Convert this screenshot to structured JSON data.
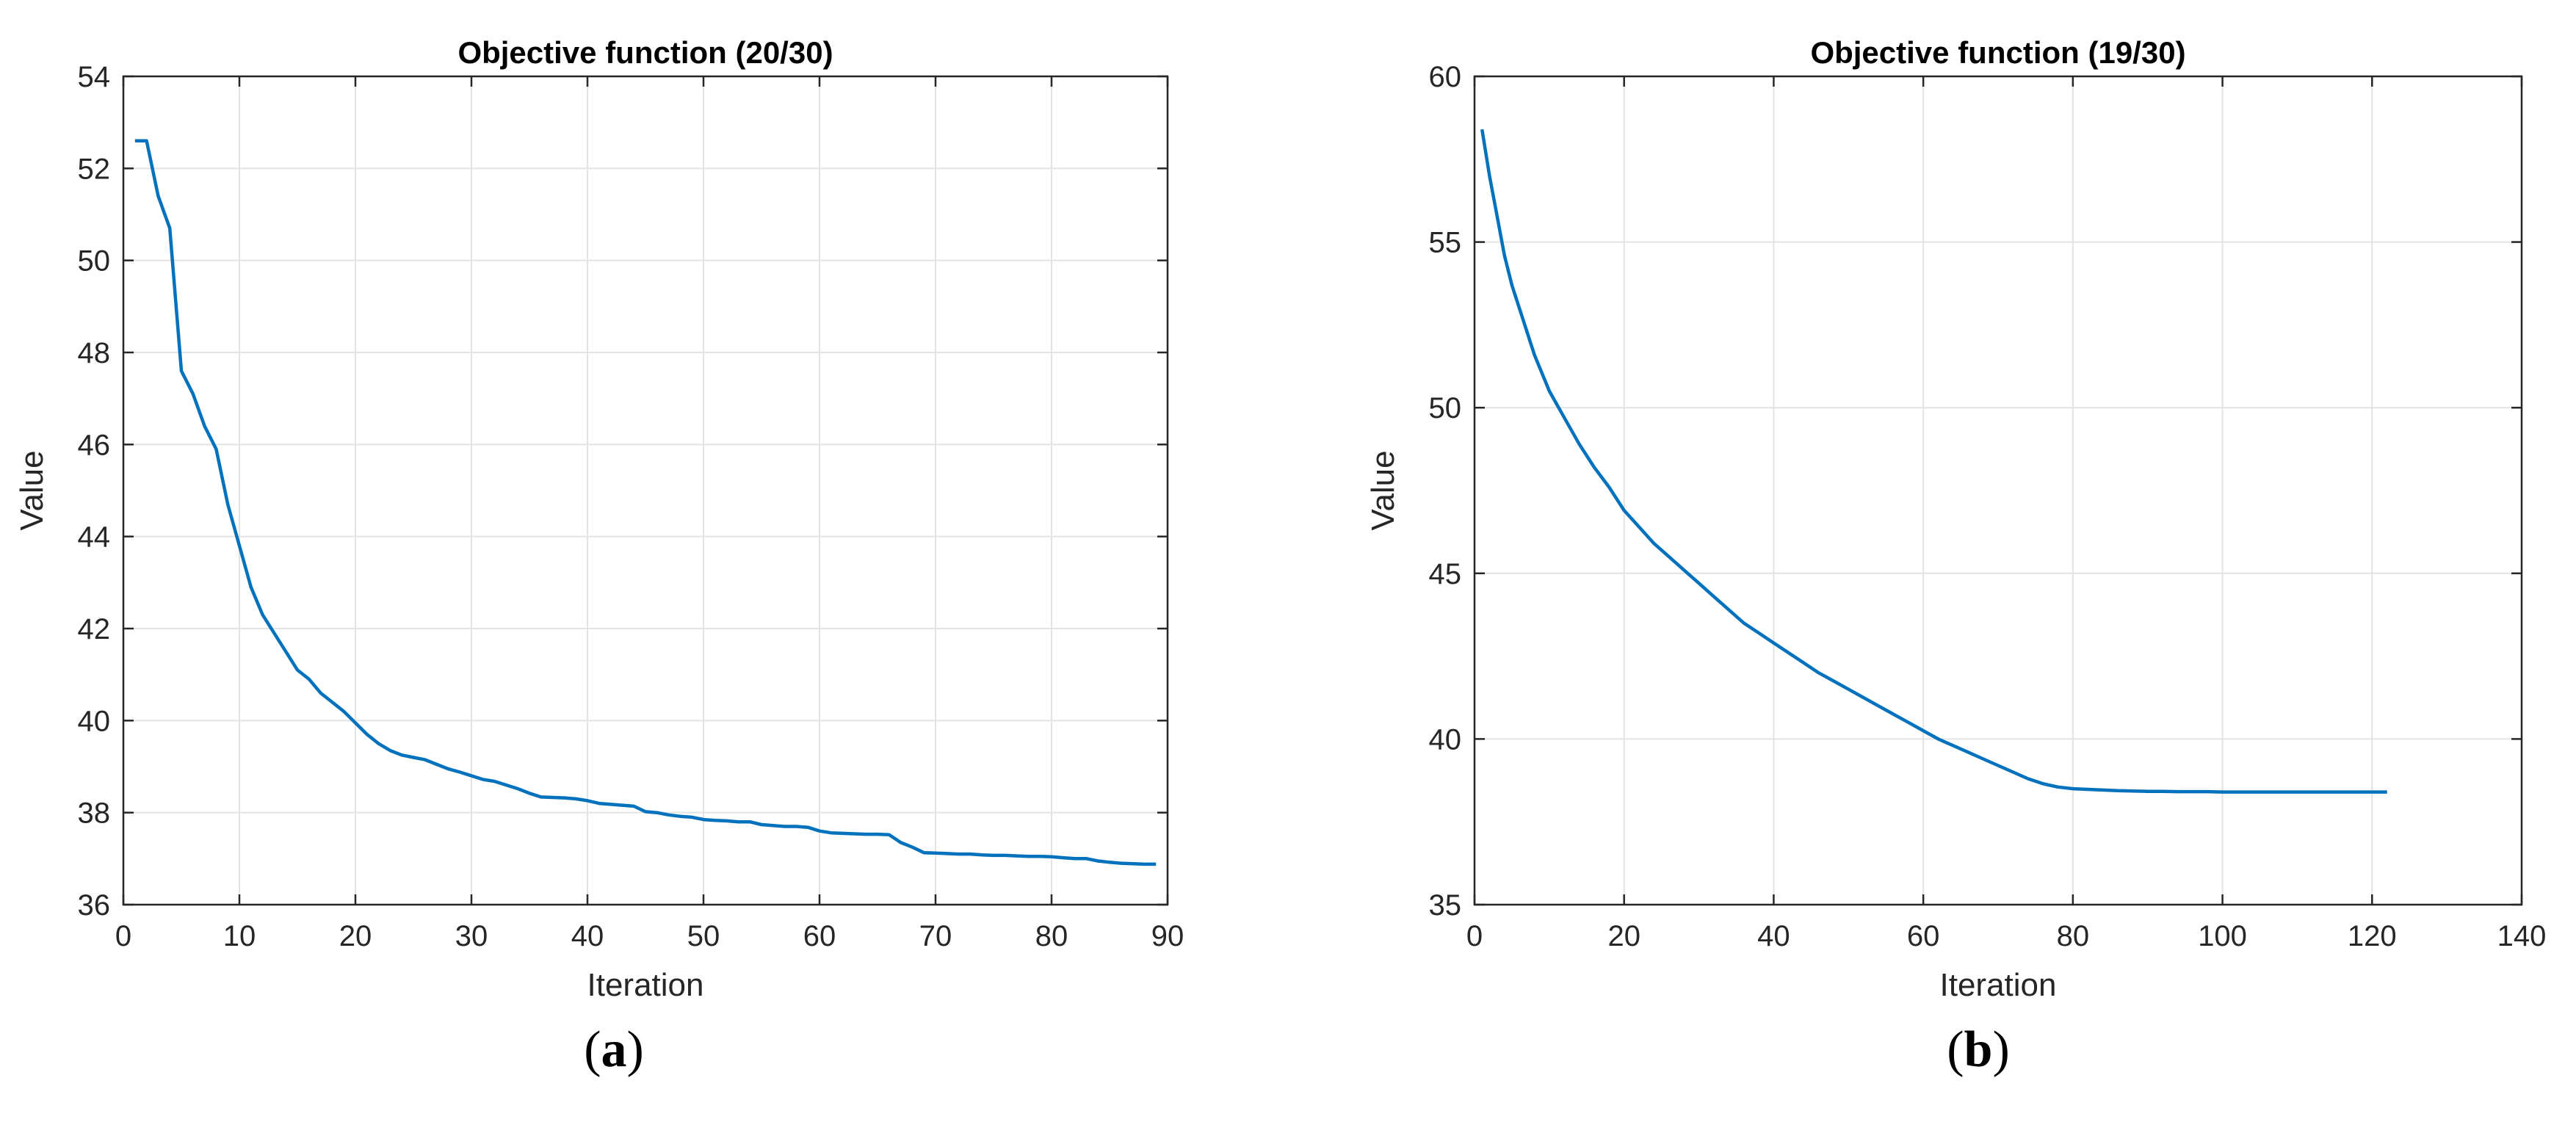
{
  "chart_data": [
    {
      "type": "line",
      "title": "Objective function (20/30)",
      "xlabel": "Iteration",
      "ylabel": "Value",
      "xlim": [
        0,
        90
      ],
      "ylim": [
        36,
        54
      ],
      "xticks": [
        0,
        10,
        20,
        30,
        40,
        50,
        60,
        70,
        80,
        90
      ],
      "yticks": [
        36,
        38,
        40,
        42,
        44,
        46,
        48,
        50,
        52,
        54
      ],
      "grid": true,
      "line_color": "#0072BD",
      "panel_label": "a",
      "series": [
        {
          "x": [
            1,
            2,
            3,
            4,
            5,
            6,
            7,
            8,
            9,
            10,
            11,
            12,
            13,
            14,
            15,
            16,
            17,
            18,
            19,
            20,
            21,
            22,
            23,
            24,
            25,
            26,
            27,
            28,
            29,
            30,
            31,
            32,
            33,
            34,
            35,
            36,
            37,
            38,
            39,
            40,
            41,
            42,
            43,
            44,
            45,
            46,
            47,
            48,
            49,
            50,
            51,
            52,
            53,
            54,
            55,
            56,
            57,
            58,
            59,
            60,
            61,
            62,
            63,
            64,
            65,
            66,
            67,
            68,
            69,
            70,
            71,
            72,
            73,
            74,
            75,
            76,
            77,
            78,
            79,
            80,
            81,
            82,
            83,
            84,
            85,
            86,
            87,
            88,
            89
          ],
          "y": [
            52.6,
            52.6,
            51.4,
            50.7,
            47.6,
            47.1,
            46.4,
            45.9,
            44.7,
            43.8,
            42.9,
            42.3,
            41.9,
            41.5,
            41.1,
            40.9,
            40.6,
            40.4,
            40.2,
            39.95,
            39.7,
            39.5,
            39.35,
            39.25,
            39.2,
            39.15,
            39.05,
            38.95,
            38.88,
            38.8,
            38.72,
            38.68,
            38.6,
            38.52,
            38.42,
            38.34,
            38.33,
            38.32,
            38.3,
            38.26,
            38.2,
            38.18,
            38.16,
            38.14,
            38.02,
            38.0,
            37.95,
            37.92,
            37.9,
            37.85,
            37.83,
            37.82,
            37.8,
            37.8,
            37.74,
            37.72,
            37.7,
            37.7,
            37.68,
            37.6,
            37.56,
            37.55,
            37.54,
            37.53,
            37.53,
            37.52,
            37.35,
            37.25,
            37.13,
            37.12,
            37.11,
            37.1,
            37.1,
            37.08,
            37.07,
            37.07,
            37.06,
            37.05,
            37.05,
            37.04,
            37.02,
            37.0,
            37.0,
            36.95,
            36.92,
            36.9,
            36.89,
            36.88,
            36.88
          ]
        }
      ]
    },
    {
      "type": "line",
      "title": "Objective function (19/30)",
      "xlabel": "Iteration",
      "ylabel": "Value",
      "xlim": [
        0,
        140
      ],
      "ylim": [
        35,
        60
      ],
      "xticks": [
        0,
        20,
        40,
        60,
        80,
        100,
        120,
        140
      ],
      "yticks": [
        35,
        40,
        45,
        50,
        55,
        60
      ],
      "grid": true,
      "line_color": "#0072BD",
      "panel_label": "b",
      "series": [
        {
          "x": [
            1,
            2,
            3,
            4,
            5,
            6,
            8,
            10,
            12,
            14,
            16,
            18,
            20,
            22,
            24,
            26,
            28,
            30,
            32,
            34,
            36,
            38,
            40,
            42,
            44,
            46,
            48,
            50,
            52,
            54,
            56,
            58,
            60,
            62,
            64,
            66,
            68,
            70,
            72,
            74,
            76,
            78,
            80,
            82,
            84,
            86,
            88,
            90,
            92,
            94,
            96,
            98,
            100,
            102,
            104,
            106,
            108,
            110,
            112,
            114,
            116,
            118,
            120,
            122
          ],
          "y": [
            58.4,
            57.0,
            55.8,
            54.6,
            53.7,
            53.0,
            51.6,
            50.5,
            49.7,
            48.9,
            48.2,
            47.6,
            46.9,
            46.4,
            45.9,
            45.5,
            45.1,
            44.7,
            44.3,
            43.9,
            43.5,
            43.2,
            42.9,
            42.6,
            42.3,
            42.0,
            41.75,
            41.5,
            41.25,
            41.0,
            40.75,
            40.5,
            40.25,
            40.0,
            39.8,
            39.6,
            39.4,
            39.2,
            39.0,
            38.8,
            38.65,
            38.55,
            38.5,
            38.48,
            38.46,
            38.44,
            38.43,
            38.42,
            38.42,
            38.41,
            38.41,
            38.41,
            38.4,
            38.4,
            38.4,
            38.4,
            38.4,
            38.4,
            38.4,
            38.4,
            38.4,
            38.4,
            38.4,
            38.4
          ]
        }
      ]
    }
  ]
}
